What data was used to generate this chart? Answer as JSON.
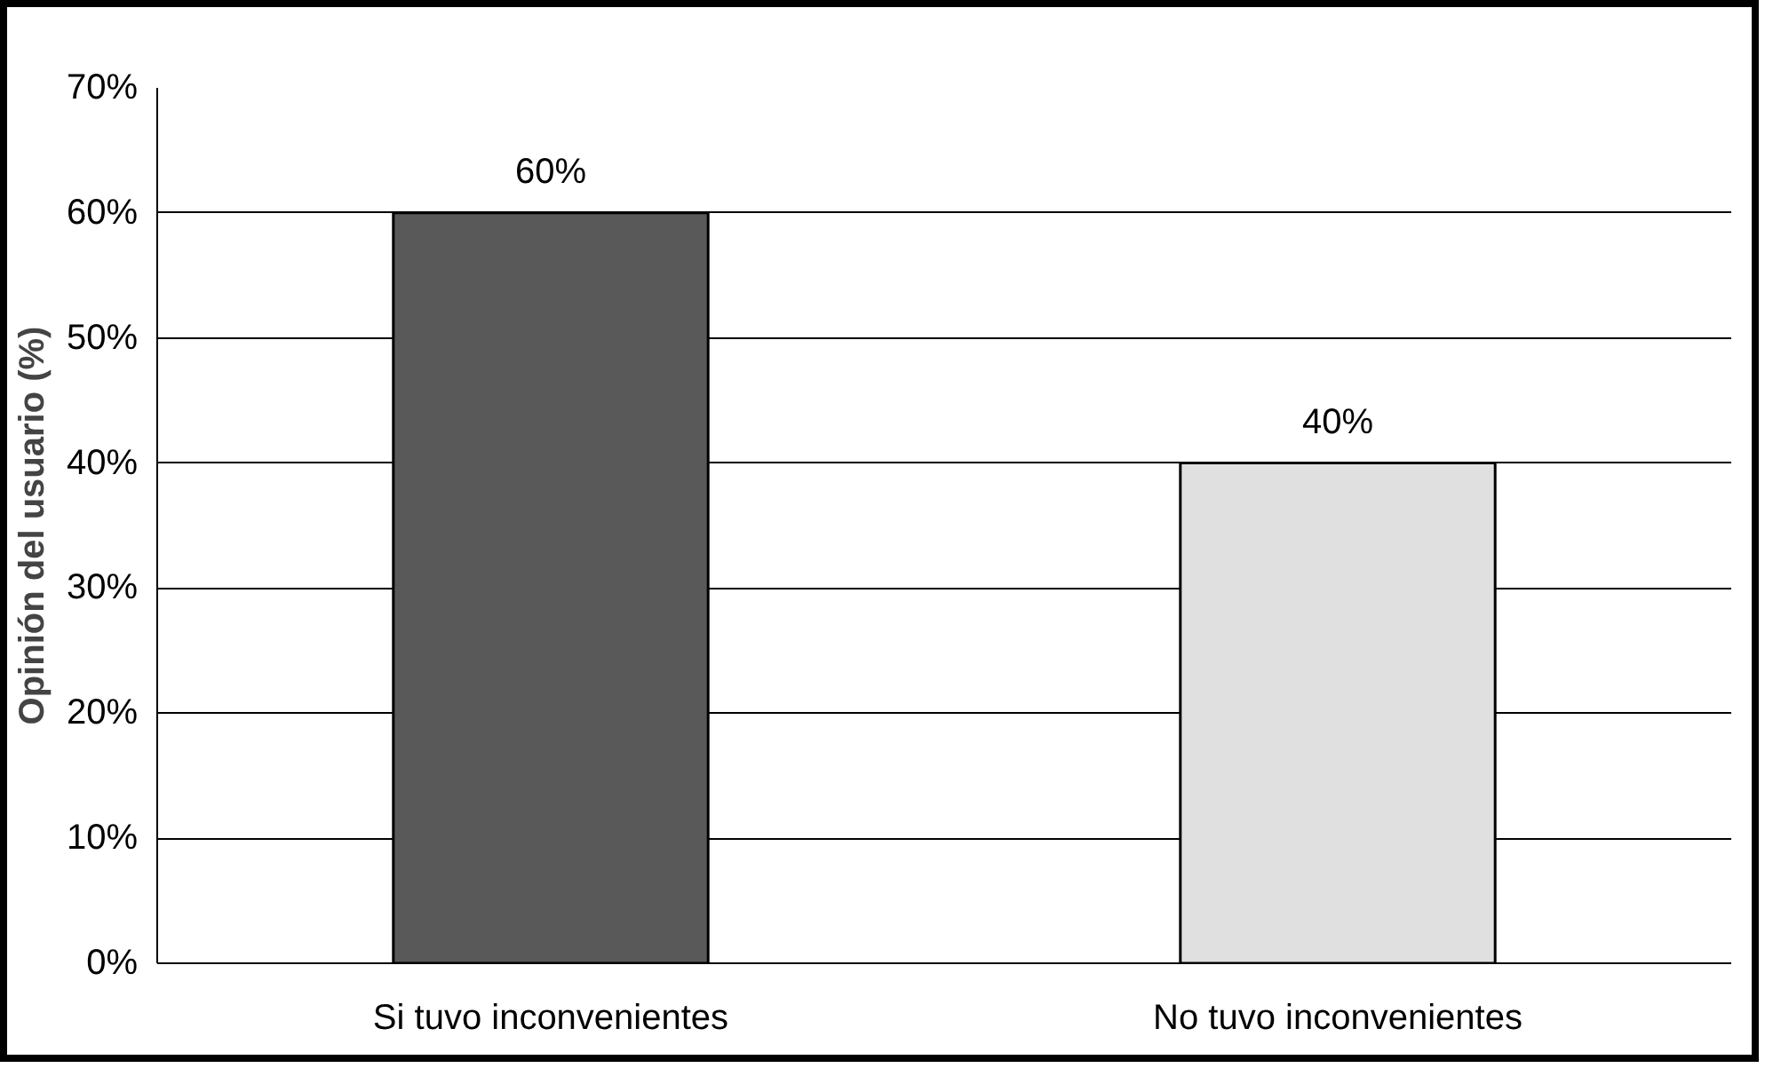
{
  "chart_data": {
    "type": "bar",
    "ylabel": "Opinión del usuario (%)",
    "categories": [
      "Si tuvo inconvenientes",
      "No tuvo inconvenientes"
    ],
    "values": [
      60,
      40
    ],
    "colors": [
      "#595959",
      "#e0e0e0"
    ],
    "value_labels": [
      "60%",
      "40%"
    ],
    "ylim": [
      0,
      70
    ],
    "yticks": [
      {
        "value": 0,
        "label": "0%"
      },
      {
        "value": 10,
        "label": "10%"
      },
      {
        "value": 20,
        "label": "20%"
      },
      {
        "value": 30,
        "label": "30%"
      },
      {
        "value": 40,
        "label": "40%"
      },
      {
        "value": 50,
        "label": "50%"
      },
      {
        "value": 60,
        "label": "60%"
      },
      {
        "value": 70,
        "label": "70%"
      }
    ],
    "grid": "y"
  }
}
